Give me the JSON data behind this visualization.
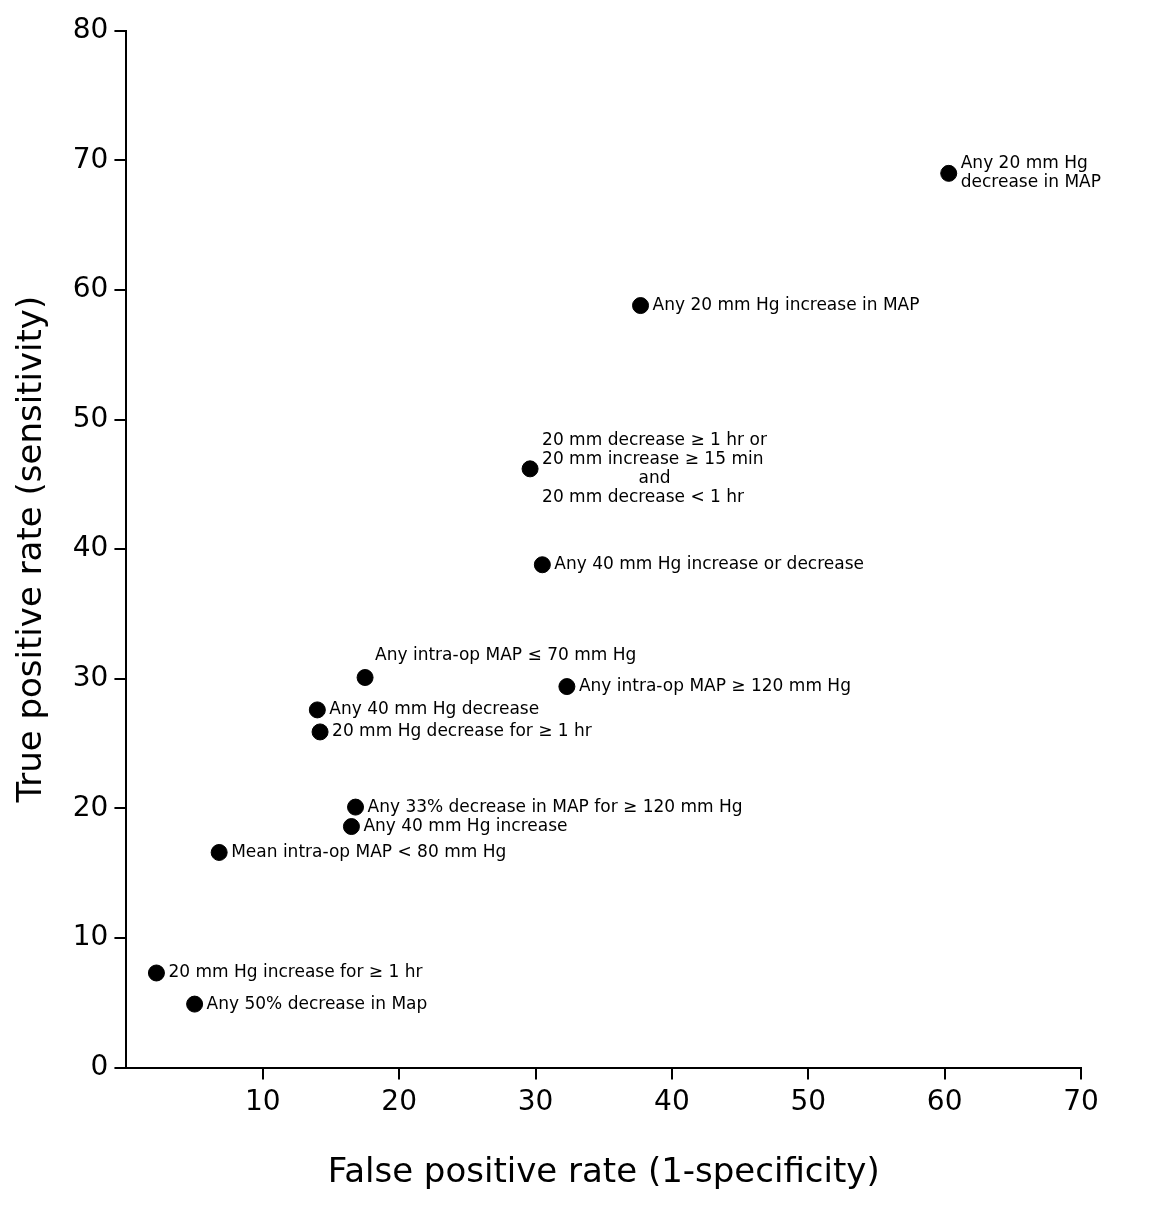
{
  "chart_data": {
    "type": "scatter",
    "xlabel": "False positive rate (1-specificity)",
    "ylabel": "True positive rate (sensitivity)",
    "xlim": [
      0,
      70
    ],
    "xticks": [
      10,
      20,
      30,
      40,
      50,
      60,
      70
    ],
    "ylim": [
      0,
      80
    ],
    "yticks": [
      0,
      10,
      20,
      30,
      40,
      50,
      60,
      70,
      80
    ],
    "grid": false,
    "legend": false,
    "marker": "circle",
    "series": [
      {
        "color": "#000000",
        "x": [
          60.3,
          37.7,
          29.6,
          30.5,
          32.3,
          17.5,
          14.0,
          14.2,
          16.8,
          16.5,
          6.8,
          2.2,
          5.0
        ],
        "values": [
          69.0,
          58.8,
          46.2,
          38.8,
          29.4,
          30.1,
          27.6,
          25.9,
          20.1,
          18.6,
          16.6,
          7.3,
          4.9
        ]
      }
    ],
    "annotations": [
      {
        "text": "Any 20 mm Hg\ndecrease in MAP",
        "x": 60.3,
        "y": 69.0
      },
      {
        "text": "Any 20 mm Hg increase in MAP",
        "x": 37.7,
        "y": 58.8
      },
      {
        "text": "20 mm decrease ≥ 1 hr or\n20 mm increase ≥ 15 min\nand\n20 mm decrease < 1 hr",
        "x": 29.6,
        "y": 46.2
      },
      {
        "text": "Any 40 mm Hg increase or decrease",
        "x": 30.5,
        "y": 38.8
      },
      {
        "text": "Any intra-op MAP ≥ 120 mm Hg",
        "x": 32.3,
        "y": 29.4
      },
      {
        "text": "Any intra-op MAP ≤ 70 mm Hg",
        "x": 17.5,
        "y": 30.1
      },
      {
        "text": "Any 40 mm Hg decrease",
        "x": 14.0,
        "y": 27.6
      },
      {
        "text": "20 mm Hg decrease for ≥ 1 hr",
        "x": 14.2,
        "y": 25.9
      },
      {
        "text": "Any 33% decrease in MAP for ≥ 120 mm Hg",
        "x": 16.8,
        "y": 20.1
      },
      {
        "text": "Any 40 mm Hg increase",
        "x": 16.5,
        "y": 18.6
      },
      {
        "text": "Mean intra-op MAP < 80 mm Hg",
        "x": 6.8,
        "y": 16.6
      },
      {
        "text": "20 mm Hg increase for ≥ 1 hr",
        "x": 2.2,
        "y": 7.3
      },
      {
        "text": "Any 50% decrease in Map",
        "x": 5.0,
        "y": 4.9
      }
    ]
  }
}
